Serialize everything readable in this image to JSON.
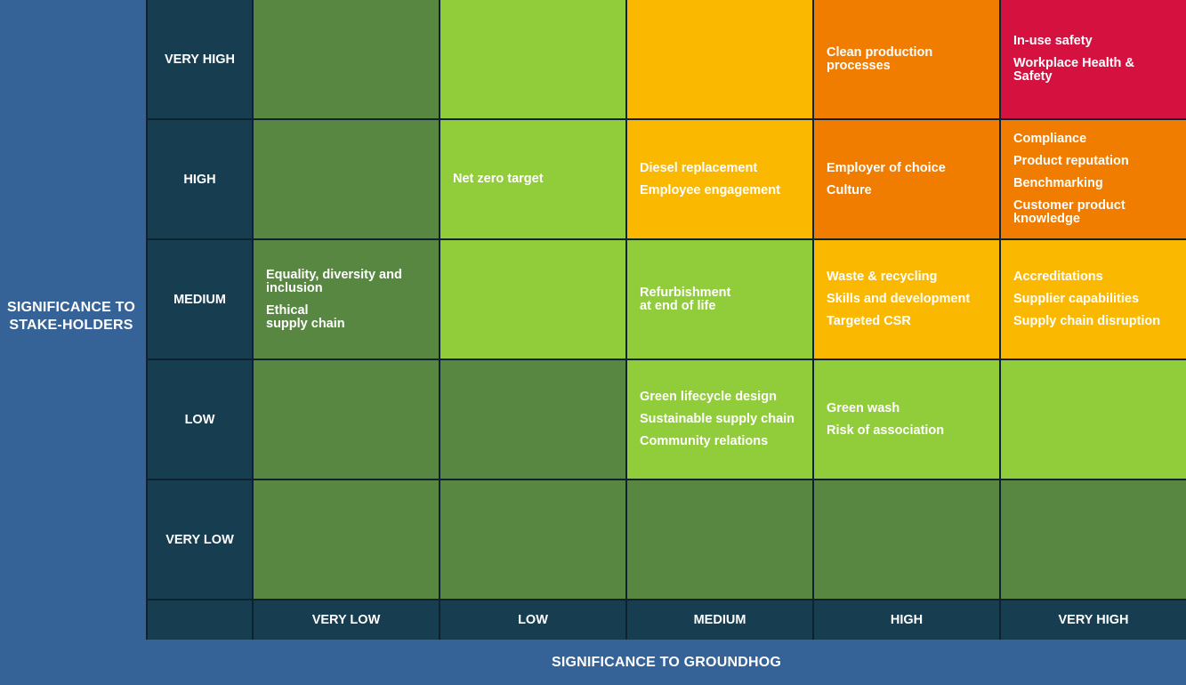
{
  "y_axis_title": "SIGNIFICANCE TO\nSTAKE-HOLDERS",
  "x_axis_title": "SIGNIFICANCE TO GROUNDHOG",
  "row_labels": [
    "VERY HIGH",
    "HIGH",
    "MEDIUM",
    "LOW",
    "VERY LOW"
  ],
  "col_labels": [
    "VERY LOW",
    "LOW",
    "MEDIUM",
    "HIGH",
    "VERY HIGH"
  ],
  "colors": {
    "dark_green": "#578741",
    "light_green": "#91cc3a",
    "yellow": "#fbb800",
    "orange": "#f07c00",
    "red": "#d51140"
  },
  "rows": [
    {
      "cells": [
        {
          "color": "dark_green",
          "items": []
        },
        {
          "color": "light_green",
          "items": []
        },
        {
          "color": "yellow",
          "items": []
        },
        {
          "color": "orange",
          "items": [
            "Clean production\nprocesses"
          ]
        },
        {
          "color": "red",
          "items": [
            "In-use safety",
            "Workplace Health & Safety"
          ]
        }
      ]
    },
    {
      "cells": [
        {
          "color": "dark_green",
          "items": []
        },
        {
          "color": "light_green",
          "items": [
            "Net zero target"
          ]
        },
        {
          "color": "yellow",
          "items": [
            "Diesel replacement",
            "Employee engagement"
          ]
        },
        {
          "color": "orange",
          "items": [
            "Employer of choice",
            "Culture"
          ]
        },
        {
          "color": "orange",
          "items": [
            "Compliance",
            "Product reputation",
            "Benchmarking",
            "Customer product\nknowledge"
          ]
        }
      ]
    },
    {
      "cells": [
        {
          "color": "dark_green",
          "items": [
            "Equality, diversity and\ninclusion",
            "Ethical\nsupply chain"
          ]
        },
        {
          "color": "light_green",
          "items": []
        },
        {
          "color": "light_green",
          "items": [
            "Refurbishment\nat end of life"
          ]
        },
        {
          "color": "yellow",
          "items": [
            "Waste & recycling",
            "Skills and development",
            "Targeted CSR"
          ]
        },
        {
          "color": "yellow",
          "items": [
            "Accreditations",
            "Supplier capabilities",
            "Supply chain disruption"
          ]
        }
      ]
    },
    {
      "cells": [
        {
          "color": "dark_green",
          "items": []
        },
        {
          "color": "dark_green",
          "items": []
        },
        {
          "color": "light_green",
          "items": [
            "Green lifecycle design",
            "Sustainable supply chain",
            "Community relations"
          ]
        },
        {
          "color": "light_green",
          "items": [
            "Green wash",
            "Risk of association"
          ]
        },
        {
          "color": "light_green",
          "items": []
        }
      ]
    },
    {
      "cells": [
        {
          "color": "dark_green",
          "items": []
        },
        {
          "color": "dark_green",
          "items": []
        },
        {
          "color": "dark_green",
          "items": []
        },
        {
          "color": "dark_green",
          "items": []
        },
        {
          "color": "dark_green",
          "items": []
        }
      ]
    }
  ]
}
